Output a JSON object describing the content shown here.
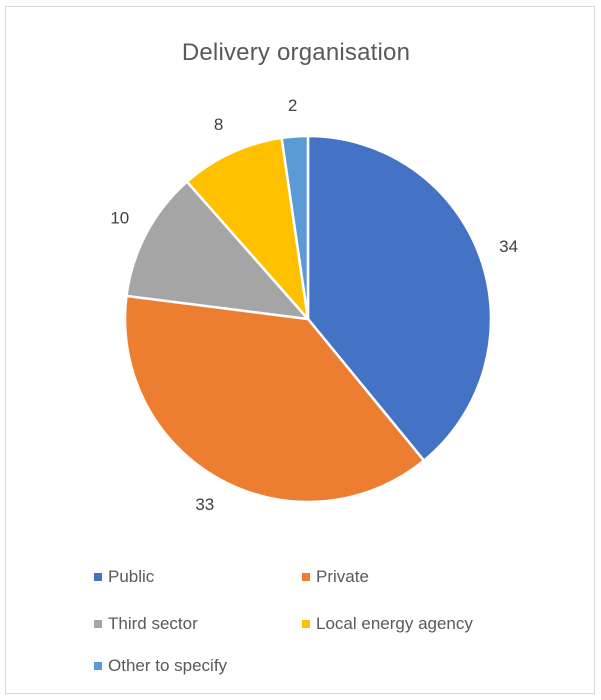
{
  "chart_data": {
    "type": "pie",
    "title": "Delivery organisation",
    "categories": [
      "Public",
      "Private",
      "Third sector",
      "Local energy agency",
      "Other to specify"
    ],
    "values": [
      34,
      33,
      10,
      8,
      2
    ],
    "colors": [
      "#4472C4",
      "#ED7D31",
      "#A5A5A5",
      "#FFC000",
      "#5B9BD5"
    ],
    "data_labels_shown": true,
    "legend_position": "bottom",
    "start_angle": "12 o'clock, clockwise"
  }
}
